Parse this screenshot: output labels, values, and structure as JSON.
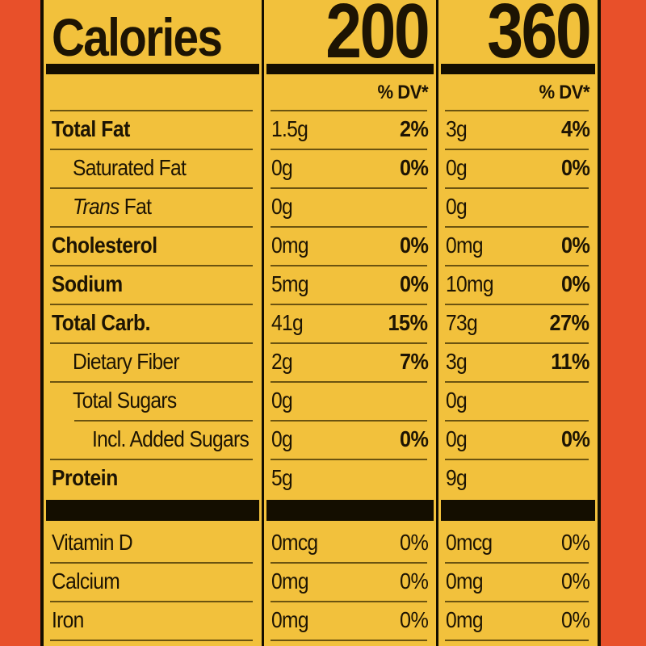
{
  "colors": {
    "background_orange": "#e8502a",
    "label_yellow": "#f2c13c",
    "text_ink": "#1d1403",
    "thin_rule": "#6b5310",
    "heavy_bar": "#140e00"
  },
  "header": {
    "calories_label": "Calories",
    "serving1_calories": "200",
    "serving2_calories": "360",
    "dv_label": "% DV*"
  },
  "rows": [
    {
      "name": "total-fat",
      "label": "Total Fat",
      "label_italic": "",
      "bold": true,
      "indent": 0,
      "rule_indent": false,
      "c2_amount": "1.5g",
      "c2_dv": "2%",
      "c3_amount": "3g",
      "c3_dv": "4%",
      "dv_bold": true
    },
    {
      "name": "saturated-fat",
      "label": "Saturated Fat",
      "label_italic": "",
      "bold": false,
      "indent": 1,
      "rule_indent": false,
      "c2_amount": "0g",
      "c2_dv": "0%",
      "c3_amount": "0g",
      "c3_dv": "0%",
      "dv_bold": true
    },
    {
      "name": "trans-fat",
      "label": " Fat",
      "label_italic": "Trans",
      "bold": false,
      "indent": 1,
      "rule_indent": false,
      "c2_amount": "0g",
      "c2_dv": "",
      "c3_amount": "0g",
      "c3_dv": "",
      "dv_bold": true
    },
    {
      "name": "cholesterol",
      "label": "Cholesterol",
      "label_italic": "",
      "bold": true,
      "indent": 0,
      "rule_indent": false,
      "c2_amount": "0mg",
      "c2_dv": "0%",
      "c3_amount": "0mg",
      "c3_dv": "0%",
      "dv_bold": true
    },
    {
      "name": "sodium",
      "label": "Sodium",
      "label_italic": "",
      "bold": true,
      "indent": 0,
      "rule_indent": false,
      "c2_amount": "5mg",
      "c2_dv": "0%",
      "c3_amount": "10mg",
      "c3_dv": "0%",
      "dv_bold": true
    },
    {
      "name": "total-carb",
      "label": "Total Carb.",
      "label_italic": "",
      "bold": true,
      "indent": 0,
      "rule_indent": false,
      "c2_amount": "41g",
      "c2_dv": "15%",
      "c3_amount": "73g",
      "c3_dv": "27%",
      "dv_bold": true
    },
    {
      "name": "dietary-fiber",
      "label": "Dietary Fiber",
      "label_italic": "",
      "bold": false,
      "indent": 1,
      "rule_indent": false,
      "c2_amount": "2g",
      "c2_dv": "7%",
      "c3_amount": "3g",
      "c3_dv": "11%",
      "dv_bold": true
    },
    {
      "name": "total-sugars",
      "label": "Total Sugars",
      "label_italic": "",
      "bold": false,
      "indent": 1,
      "rule_indent": false,
      "c2_amount": "0g",
      "c2_dv": "",
      "c3_amount": "0g",
      "c3_dv": "",
      "dv_bold": true
    },
    {
      "name": "added-sugars",
      "label": "Incl. Added Sugars",
      "label_italic": "",
      "bold": false,
      "indent": 2,
      "rule_indent": true,
      "c2_amount": "0g",
      "c2_dv": "0%",
      "c3_amount": "0g",
      "c3_dv": "0%",
      "dv_bold": true
    },
    {
      "name": "protein",
      "label": "Protein",
      "label_italic": "",
      "bold": true,
      "indent": 0,
      "rule_indent": false,
      "c2_amount": "5g",
      "c2_dv": "",
      "c3_amount": "9g",
      "c3_dv": "",
      "dv_bold": true
    }
  ],
  "micronutrients": [
    {
      "name": "vitamin-d",
      "label": "Vitamin D",
      "c2_amount": "0mcg",
      "c2_dv": "0%",
      "c3_amount": "0mcg",
      "c3_dv": "0%"
    },
    {
      "name": "calcium",
      "label": "Calcium",
      "c2_amount": "0mg",
      "c2_dv": "0%",
      "c3_amount": "0mg",
      "c3_dv": "0%"
    },
    {
      "name": "iron",
      "label": "Iron",
      "c2_amount": "0mg",
      "c2_dv": "0%",
      "c3_amount": "0mg",
      "c3_dv": "0%"
    }
  ]
}
